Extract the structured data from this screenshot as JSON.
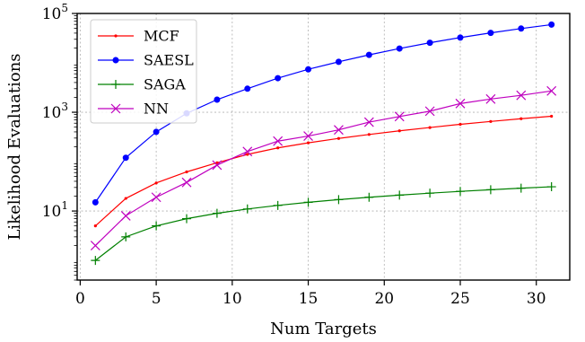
{
  "chart_data": {
    "type": "line",
    "xlabel": "Num Targets",
    "ylabel": "Likelihood Evaluations",
    "xlim": [
      -0.2,
      32.2
    ],
    "ylim": [
      0.4,
      100000
    ],
    "yscale": "log",
    "grid": true,
    "legend_position": "top-left",
    "x_ticks": [
      0,
      5,
      10,
      15,
      20,
      25,
      30
    ],
    "y_ticks": [
      {
        "value": 10,
        "base": "10",
        "exp": "1"
      },
      {
        "value": 1000,
        "base": "10",
        "exp": "3"
      },
      {
        "value": 100000,
        "base": "10",
        "exp": "5"
      }
    ],
    "x": [
      1,
      3,
      5,
      7,
      9,
      11,
      13,
      15,
      17,
      19,
      21,
      23,
      25,
      27,
      29,
      31
    ],
    "series": [
      {
        "name": "MCF",
        "color": "#ff0000",
        "marker": "dot",
        "values": [
          5,
          18,
          37,
          62,
          95,
          140,
          190,
          240,
          295,
          355,
          420,
          490,
          570,
          650,
          740,
          830
        ]
      },
      {
        "name": "SAESL",
        "color": "#0000ff",
        "marker": "circle",
        "values": [
          15,
          120,
          400,
          950,
          1800,
          3000,
          4900,
          7400,
          10500,
          14500,
          19500,
          25500,
          32500,
          40500,
          49500,
          59500
        ]
      },
      {
        "name": "SAGA",
        "color": "#008000",
        "marker": "plus",
        "values": [
          1,
          3,
          5,
          7,
          9,
          11,
          13,
          15,
          17,
          19,
          21,
          23,
          25,
          27,
          29,
          31
        ]
      },
      {
        "name": "NN",
        "color": "#bf00bf",
        "marker": "x",
        "values": [
          2,
          8,
          19,
          38,
          85,
          160,
          260,
          330,
          440,
          630,
          820,
          1050,
          1500,
          1850,
          2200,
          2700
        ]
      }
    ]
  }
}
